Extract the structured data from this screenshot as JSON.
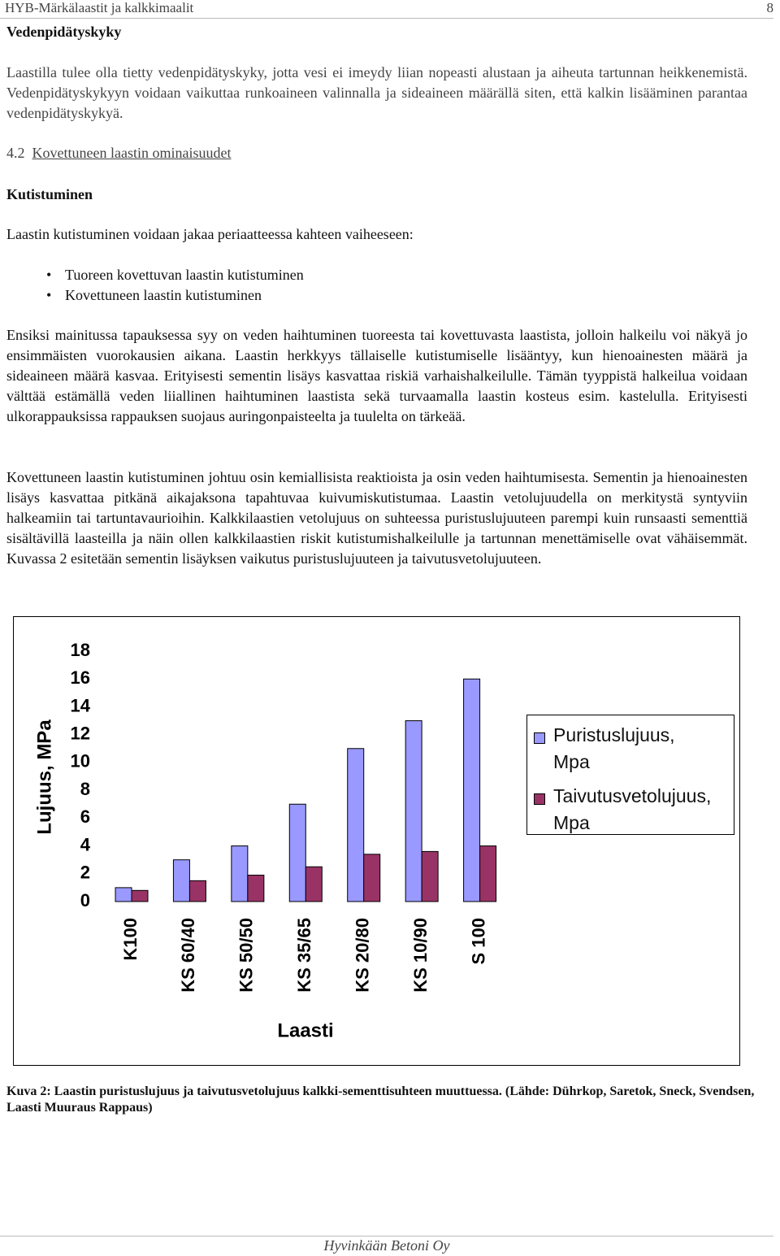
{
  "header": {
    "title": "HYB-Märkälaastit ja kalkkimaalit",
    "page": "8"
  },
  "section1": {
    "heading": "Vedenpidätyskyky",
    "paragraph": "Laastilla tulee olla tietty vedenpidätyskyky, jotta vesi ei imeydy liian nopeasti alustaan ja aiheuta tartunnan heikkenemistä. Vedenpidätyskykyyn voidaan vaikuttaa runkoaineen valinnalla ja sideaineen määrällä siten, että kalkin lisääminen parantaa vedenpidätyskykyä."
  },
  "section2": {
    "number": "4.2",
    "heading": "Kovettuneen laastin ominaisuudet"
  },
  "section3": {
    "heading": "Kutistuminen",
    "intro": "Laastin kutistuminen voidaan jakaa periaatteessa kahteen vaiheeseen:",
    "bullets": [
      "Tuoreen kovettuvan laastin kutistuminen",
      "Kovettuneen laastin kutistuminen"
    ],
    "paragraphs": [
      "Ensiksi mainitussa tapauksessa syy on veden haihtuminen tuoreesta tai kovettuvasta laastista, jolloin halkeilu voi näkyä jo ensimmäisten vuorokausien aikana. Laastin herkkyys tällaiselle kutistumiselle lisääntyy, kun hienoainesten määrä ja sideaineen määrä kasvaa. Erityisesti sementin lisäys kasvattaa riskiä varhaishalkeilulle. Tämän tyyppistä halkeilua voidaan välttää estämällä veden liiallinen haihtuminen laastista sekä turvaamalla laastin kosteus esim. kastelulla. Erityisesti ulkorappauksissa rappauksen suojaus auringonpaisteelta ja tuulelta on tärkeää.",
      "Kovettuneen laastin kutistuminen johtuu osin kemiallisista reaktioista ja osin veden haihtumisesta. Sementin ja hienoainesten lisäys kasvattaa pitkänä aikajaksona tapahtuvaa kuivumiskutistumaa. Laastin vetolujuudella on merkitystä syntyviin halkeamiin tai tartuntavaurioihin. Kalkkilaastien vetolujuus on suhteessa puristuslujuuteen parempi kuin runsaasti sementtiä sisältävillä laasteilla ja näin ollen kalkkilaastien riskit kutistumishalkeilulle ja tartunnan menettämiselle ovat vähäisemmät. Kuvassa 2 esitetään sementin lisäyksen vaikutus puristuslujuuteen ja taivutusvetolujuuteen."
    ]
  },
  "chart_data": {
    "type": "bar",
    "x_label": "Laasti",
    "y_label": "Lujuus, MPa",
    "categories": [
      "K100",
      "KS 60/40",
      "KS 50/50",
      "KS 35/65",
      "KS 20/80",
      "KS 10/90",
      "S 100"
    ],
    "series": [
      {
        "name": "Puristuslujuus, Mpa",
        "color": "#9999ff",
        "values": [
          1,
          3,
          4,
          7,
          11,
          13,
          16
        ]
      },
      {
        "name": "Taivutusvetolujuus, Mpa",
        "color": "#993366",
        "values": [
          0.8,
          1.5,
          1.9,
          2.5,
          3.4,
          3.6,
          4
        ]
      }
    ],
    "ylim": [
      0,
      18
    ],
    "yticks": [
      0,
      2,
      4,
      6,
      8,
      10,
      12,
      14,
      16,
      18
    ],
    "grid": false,
    "legend": "right"
  },
  "figure_caption": "Kuva 2: Laastin puristuslujuus ja taivutusvetolujuus kalkki-sementtisuhteen muuttuessa. (Lähde: Dührkop, Saretok, Sneck, Svendsen, Laasti Muuraus Rappaus)",
  "footer": "Hyvinkään Betoni Oy"
}
